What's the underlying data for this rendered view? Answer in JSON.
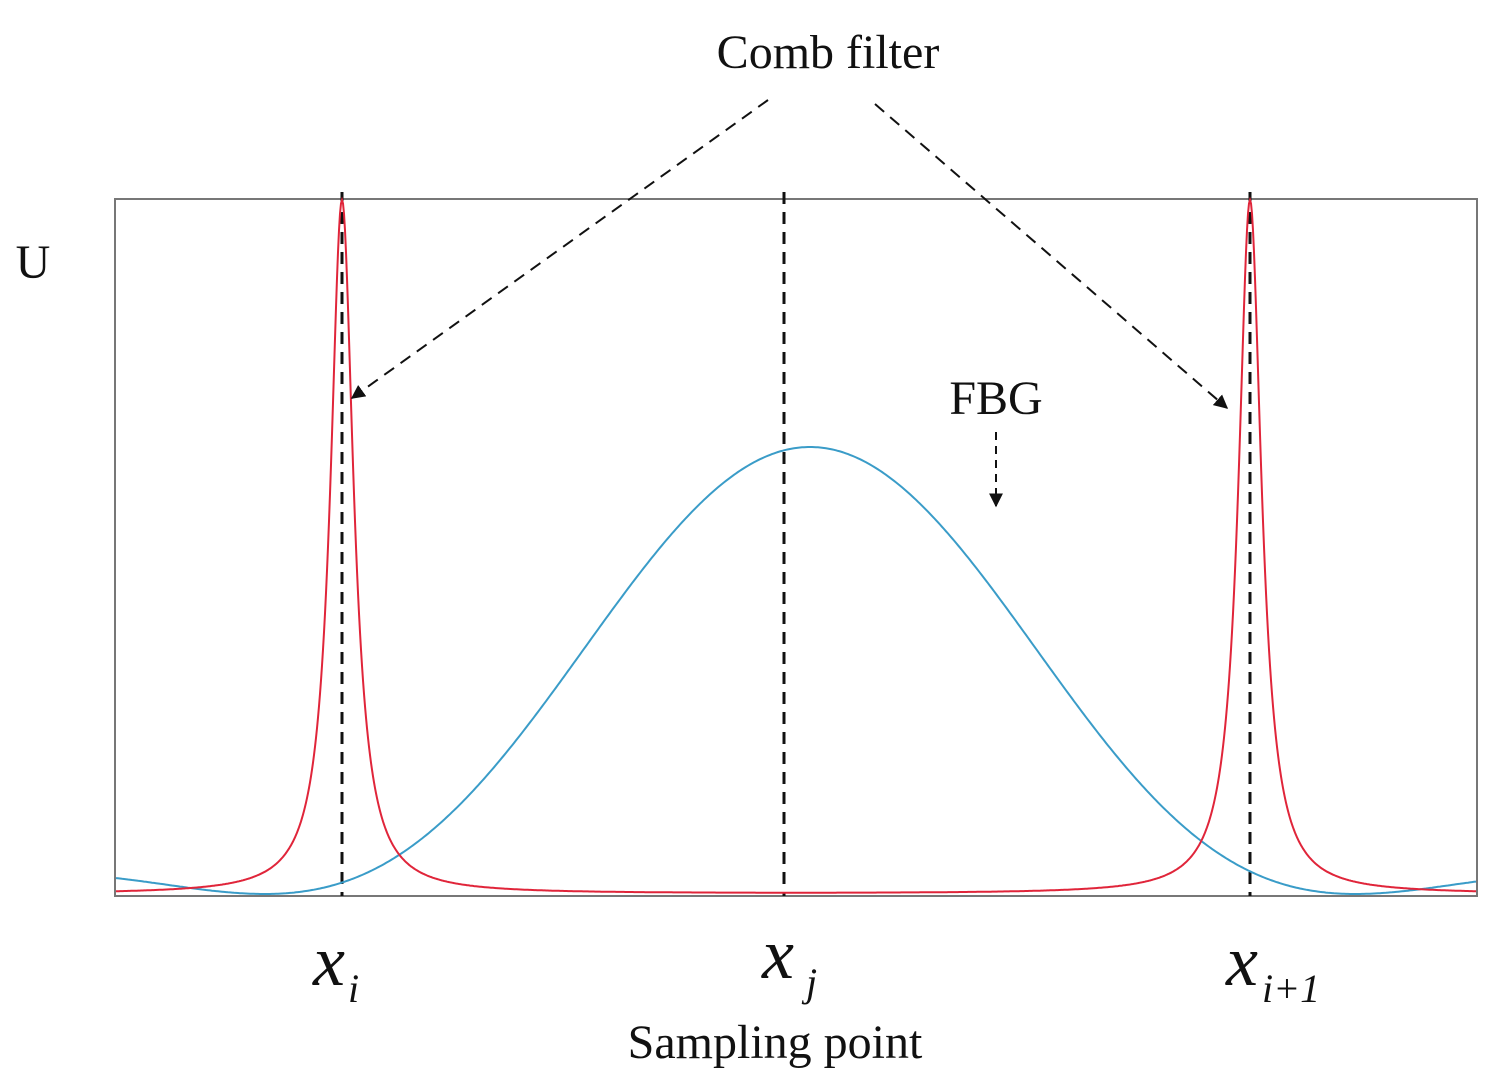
{
  "figure": {
    "top_label": "Comb filter",
    "fbg_label": "FBG",
    "y_axis_label": "U",
    "x_axis_label": "Sampling point",
    "ticks": [
      {
        "base": "x",
        "sub": "i"
      },
      {
        "base": "x",
        "sub": "j"
      },
      {
        "base": "x",
        "sub": "i+1"
      }
    ],
    "colors": {
      "comb_filter_curve": "#e0253a",
      "fbg_curve": "#3a9cc8",
      "frame": "#777777",
      "guides": "#111111"
    }
  }
}
